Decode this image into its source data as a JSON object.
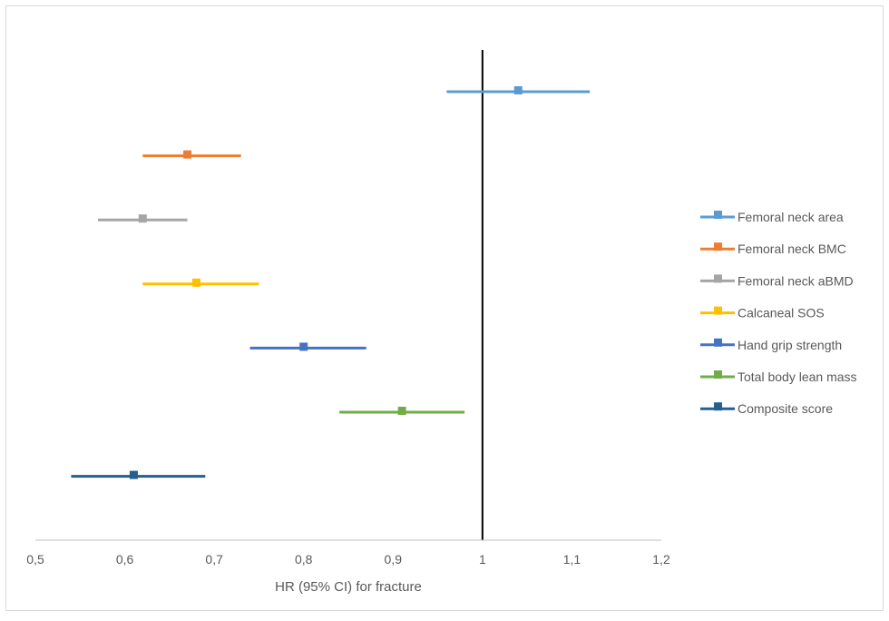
{
  "chart_data": {
    "type": "forest",
    "title": "",
    "xlabel": "HR (95% CI) for fracture",
    "ylabel": "",
    "xlim": [
      0.5,
      1.2
    ],
    "x_ticks": [
      "0,5",
      "0,6",
      "0,7",
      "0,8",
      "0,9",
      "1",
      "1,1",
      "1,2"
    ],
    "x_tick_values": [
      0.5,
      0.6,
      0.7,
      0.8,
      0.9,
      1.0,
      1.1,
      1.2
    ],
    "reference_line": 1.0,
    "grid": false,
    "legend_position": "right",
    "series": [
      {
        "name": "Femoral neck area",
        "hr": 1.04,
        "ci_low": 0.96,
        "ci_high": 1.12,
        "color": "#5B9BD5"
      },
      {
        "name": "Femoral neck BMC",
        "hr": 0.67,
        "ci_low": 0.62,
        "ci_high": 0.73,
        "color": "#ED7D31"
      },
      {
        "name": "Femoral neck aBMD",
        "hr": 0.62,
        "ci_low": 0.57,
        "ci_high": 0.67,
        "color": "#A5A5A5"
      },
      {
        "name": "Calcaneal SOS",
        "hr": 0.68,
        "ci_low": 0.62,
        "ci_high": 0.75,
        "color": "#FFC000"
      },
      {
        "name": "Hand grip strength",
        "hr": 0.8,
        "ci_low": 0.74,
        "ci_high": 0.87,
        "color": "#4472C4"
      },
      {
        "name": "Total body lean mass",
        "hr": 0.91,
        "ci_low": 0.84,
        "ci_high": 0.98,
        "color": "#70AD47"
      },
      {
        "name": "Composite score",
        "hr": 0.61,
        "ci_low": 0.54,
        "ci_high": 0.69,
        "color": "#255E91"
      }
    ]
  }
}
